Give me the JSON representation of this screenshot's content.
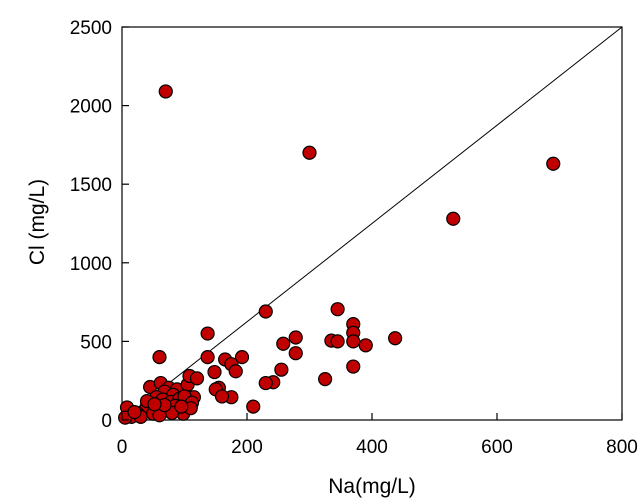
{
  "chart_data": {
    "type": "scatter",
    "title": "",
    "xlabel": "Na(mg/L)",
    "ylabel": "Cl  (mg/L)",
    "xlim": [
      0,
      800
    ],
    "ylim": [
      0,
      2500
    ],
    "x_ticks": [
      "0",
      "200",
      "400",
      "600",
      "800"
    ],
    "y_ticks": [
      "0",
      "500",
      "1000",
      "1500",
      "2000",
      "2500"
    ],
    "x_tick_values": [
      0,
      200,
      400,
      600,
      800
    ],
    "y_tick_values": [
      0,
      500,
      1000,
      1500,
      2000,
      2500
    ],
    "grid": false,
    "reference_line": {
      "from": [
        0,
        0
      ],
      "to": [
        800,
        2500
      ]
    },
    "marker_color": "#c00000",
    "marker_edge_color": "#000000",
    "series": [
      {
        "points": [
          [
            70,
            2090
          ],
          [
            300,
            1700
          ],
          [
            690,
            1630
          ],
          [
            530,
            1280
          ],
          [
            230,
            690
          ],
          [
            345,
            705
          ],
          [
            370,
            610
          ],
          [
            137,
            550
          ],
          [
            370,
            555
          ],
          [
            60,
            400
          ],
          [
            137,
            400
          ],
          [
            165,
            385
          ],
          [
            192,
            400
          ],
          [
            175,
            355
          ],
          [
            148,
            305
          ],
          [
            182,
            310
          ],
          [
            278,
            525
          ],
          [
            335,
            505
          ],
          [
            345,
            500
          ],
          [
            370,
            500
          ],
          [
            390,
            475
          ],
          [
            437,
            520
          ],
          [
            258,
            485
          ],
          [
            278,
            425
          ],
          [
            370,
            340
          ],
          [
            255,
            320
          ],
          [
            325,
            260
          ],
          [
            242,
            240
          ],
          [
            230,
            235
          ],
          [
            155,
            205
          ],
          [
            150,
            195
          ],
          [
            175,
            145
          ],
          [
            160,
            150
          ],
          [
            210,
            85
          ],
          [
            8,
            80
          ],
          [
            45,
            210
          ],
          [
            62,
            235
          ],
          [
            75,
            205
          ],
          [
            88,
            195
          ],
          [
            68,
            180
          ],
          [
            82,
            160
          ],
          [
            105,
            225
          ],
          [
            108,
            280
          ],
          [
            115,
            145
          ],
          [
            120,
            265
          ],
          [
            55,
            145
          ],
          [
            65,
            130
          ],
          [
            78,
            115
          ],
          [
            92,
            135
          ],
          [
            100,
            150
          ],
          [
            112,
            110
          ],
          [
            40,
            90
          ],
          [
            48,
            75
          ],
          [
            58,
            70
          ],
          [
            70,
            60
          ],
          [
            35,
            55
          ],
          [
            85,
            90
          ],
          [
            95,
            55
          ],
          [
            98,
            40
          ],
          [
            110,
            75
          ],
          [
            25,
            40
          ],
          [
            15,
            20
          ],
          [
            5,
            15
          ],
          [
            30,
            20
          ],
          [
            50,
            40
          ],
          [
            80,
            45
          ],
          [
            60,
            30
          ],
          [
            20,
            50
          ],
          [
            40,
            120
          ],
          [
            95,
            85
          ],
          [
            68,
            95
          ],
          [
            52,
            100
          ]
        ]
      }
    ]
  }
}
